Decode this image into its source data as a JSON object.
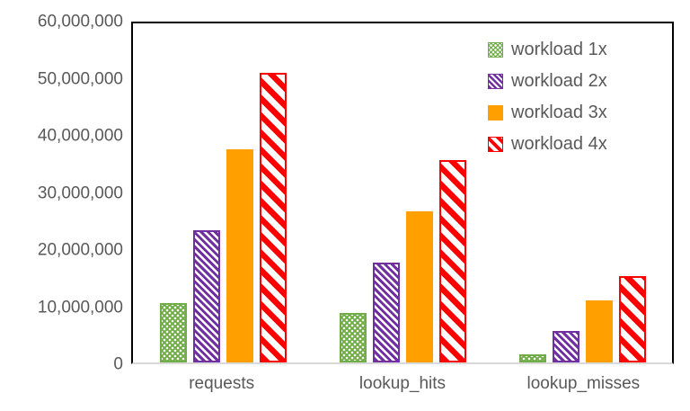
{
  "chart_data": {
    "type": "bar",
    "title": "",
    "xlabel": "",
    "ylabel": "",
    "categories": [
      "requests",
      "lookup_hits",
      "lookup_misses"
    ],
    "series": [
      {
        "name": "workload 1x",
        "color": "#70AD47",
        "pattern": "dotted-lattice",
        "values": [
          10500000,
          8800000,
          1500000
        ]
      },
      {
        "name": "workload 2x",
        "color": "#7030A0",
        "pattern": "thin-diagonal-hatch",
        "values": [
          23400000,
          17700000,
          5600000
        ]
      },
      {
        "name": "workload 3x",
        "color": "#FFA000",
        "pattern": "solid",
        "values": [
          37700000,
          26800000,
          11000000
        ]
      },
      {
        "name": "workload 4x",
        "color": "#FF0000",
        "pattern": "wide-diagonal-stripes",
        "values": [
          51200000,
          35800000,
          15300000
        ]
      }
    ],
    "ylim": [
      0,
      60000000
    ],
    "ytick_labels": [
      "0",
      "10,000,000",
      "20,000,000",
      "30,000,000",
      "40,000,000",
      "50,000,000",
      "60,000,000"
    ],
    "grid": false,
    "legend_position": "top-right-inside",
    "text_color": "#595959",
    "axis_line_color": "#D9D9D9",
    "plot_border_color": "#000000"
  }
}
